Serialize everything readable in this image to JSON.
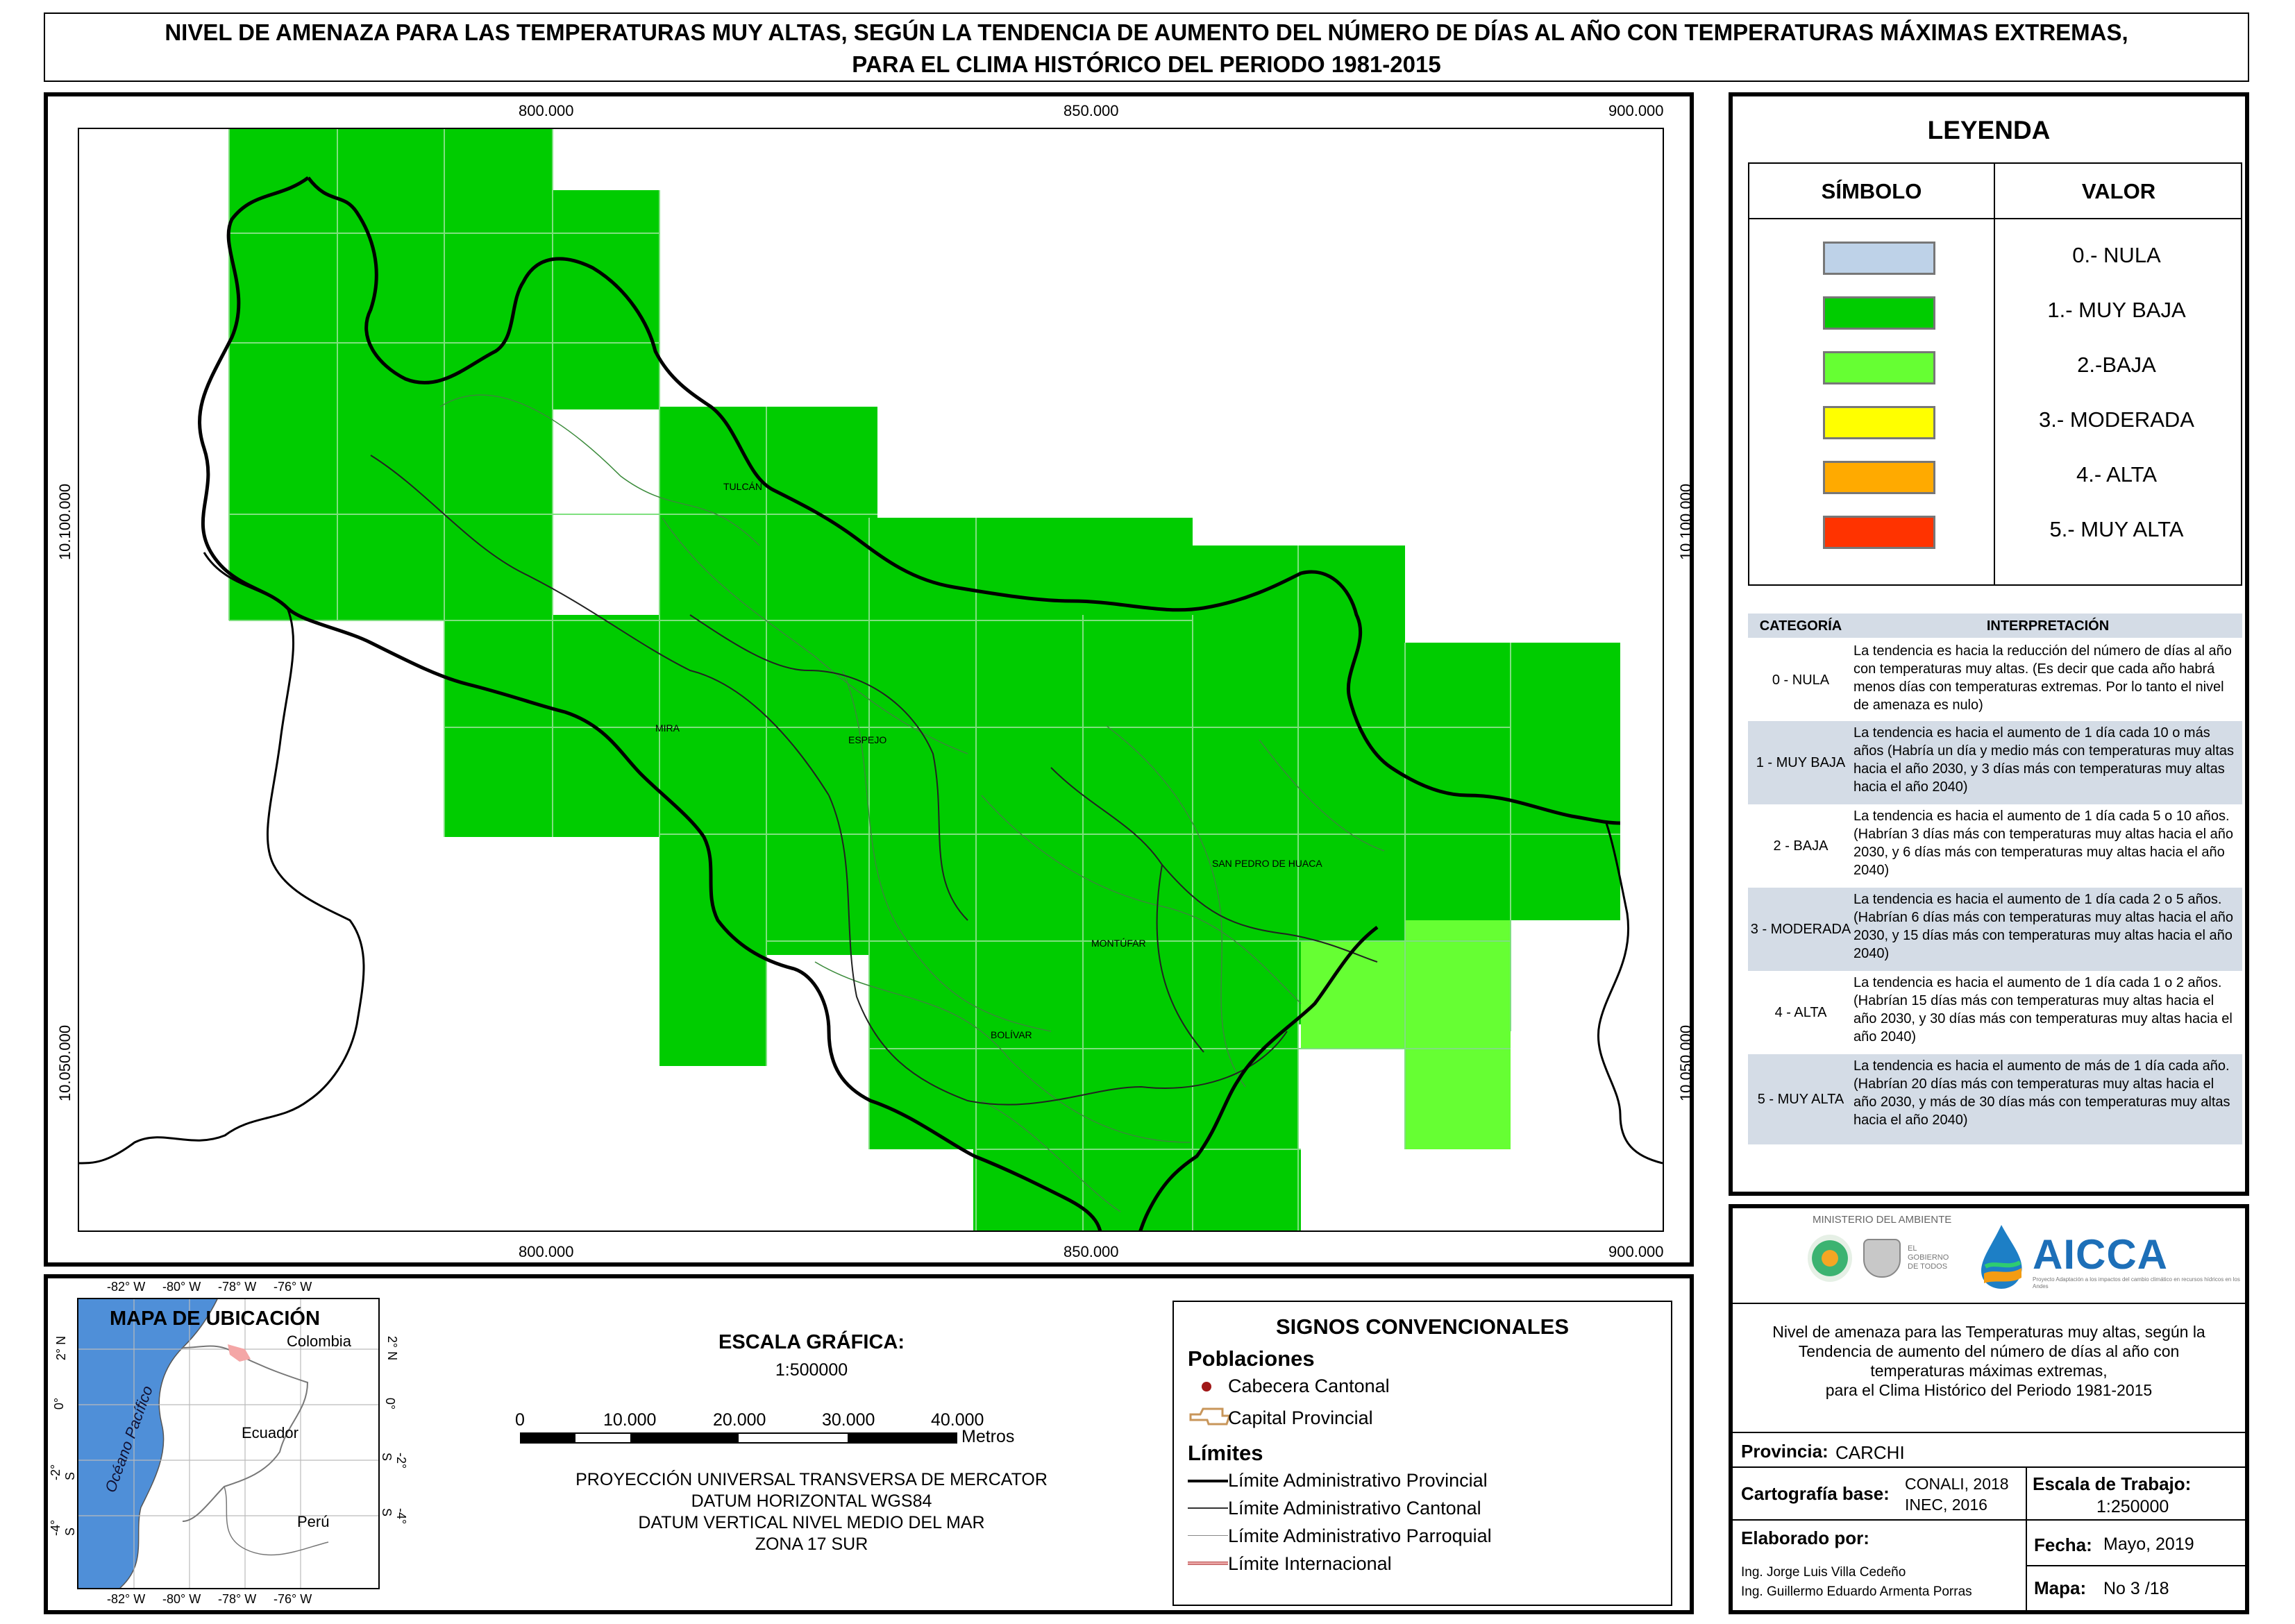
{
  "title": {
    "line1": "NIVEL DE AMENAZA PARA LAS TEMPERATURAS MUY ALTAS, SEGÚN LA TENDENCIA DE AUMENTO DEL NÚMERO DE DÍAS AL AÑO CON TEMPERATURAS MÁXIMAS EXTREMAS,",
    "line2": "PARA EL CLIMA HISTÓRICO DEL PERIODO 1981-2015"
  },
  "map": {
    "x_ticks": [
      "800.000",
      "850.000",
      "900.000"
    ],
    "y_ticks": [
      "10.100.000",
      "10.050.000"
    ],
    "place_labels": [
      "TULCÁN",
      "MIRA",
      "ESPEJO",
      "SAN PEDRO DE HUACA",
      "MONTÚFAR",
      "BOLÍVAR"
    ],
    "colors": {
      "muy_baja": "#00cc00",
      "baja": "#66ff33",
      "grid": "#7fe07f",
      "boundary": "#000000"
    }
  },
  "legend": {
    "title": "LEYENDA",
    "col_symbol": "SÍMBOLO",
    "col_value": "VALOR",
    "items": [
      {
        "label": "0.- NULA",
        "color": "#bed2e8"
      },
      {
        "label": "1.- MUY BAJA",
        "color": "#00cc00"
      },
      {
        "label": "2.-BAJA",
        "color": "#66ff33"
      },
      {
        "label": "3.- MODERADA",
        "color": "#ffff00"
      },
      {
        "label": "4.- ALTA",
        "color": "#ffaa00"
      },
      {
        "label": "5.- MUY ALTA",
        "color": "#ff3300"
      }
    ]
  },
  "interpretation": {
    "col_category": "CATEGORÍA",
    "col_interp": "INTERPRETACIÓN",
    "rows": [
      {
        "cat": "0 - NULA",
        "text": "La tendencia es hacia la reducción del número de días al año con temperaturas muy altas. (Es decir que cada año habrá menos días con temperaturas extremas. Por lo tanto el nivel de amenaza es nulo)"
      },
      {
        "cat": "1 - MUY BAJA",
        "text": "La tendencia es hacia el aumento de 1 día cada 10 o más años (Habría un día y medio más con temperaturas muy altas hacia el año 2030, y 3 días más con temperaturas muy altas hacia el año 2040)"
      },
      {
        "cat": "2 - BAJA",
        "text": "La tendencia es hacia el aumento de 1 día cada 5 o 10 años. (Habrían 3 días más con temperaturas muy altas hacia el año 2030, y 6 días más con temperaturas muy altas hacia el año 2040)"
      },
      {
        "cat": "3 - MODERADA",
        "text": "La tendencia es hacia el aumento de 1 día cada 2 o 5 años. (Habrían 6 días más con temperaturas muy altas hacia el año 2030, y 15 días más con temperaturas muy altas hacia el año 2040)"
      },
      {
        "cat": "4 - ALTA",
        "text": "La tendencia es hacia el aumento de 1 día cada 1 o 2 años. (Habrían 15 días más con temperaturas muy altas hacia el año 2030, y 30 días más con temperaturas muy altas hacia el año 2040)"
      },
      {
        "cat": "5 - MUY ALTA",
        "text": "La tendencia es hacia el aumento de más de 1 día cada año. (Habrían 20 días más con temperaturas muy altas hacia el año 2030, y más de 30 días más con temperaturas muy altas hacia el año 2040)"
      }
    ]
  },
  "location_map": {
    "title": "MAPA DE UBICACIÓN",
    "lon_ticks": [
      "-82° W",
      "-80° W",
      "-78° W",
      "-76° W"
    ],
    "lat_ticks": [
      "2° N",
      "0°",
      "-2° S",
      "-4° S"
    ],
    "labels": {
      "colombia": "Colombia",
      "ecuador": "Ecuador",
      "peru": "Perú",
      "ocean": "Océano Pacífico"
    }
  },
  "scale": {
    "title": "ESCALA GRÁFICA:",
    "ratio": "1:500000",
    "ticks": [
      "0",
      "10.000",
      "20.000",
      "30.000",
      "40.000"
    ],
    "unit": "Metros",
    "projection": [
      "PROYECCIÓN UNIVERSAL TRANSVERSA DE MERCATOR",
      "DATUM HORIZONTAL WGS84",
      "DATUM VERTICAL NIVEL MEDIO DEL MAR",
      "ZONA 17 SUR"
    ]
  },
  "signs": {
    "title": "SIGNOS CONVENCIONALES",
    "poblaciones": "Poblaciones",
    "cabecera": "Cabecera Cantonal",
    "capital": "Capital Provincial",
    "limites": "Límites",
    "lim_prov": "Límite Administrativo Provincial",
    "lim_cant": "Límite Administrativo Cantonal",
    "lim_parr": "Límite Administrativo Parroquial",
    "lim_int": "Límite Internacional"
  },
  "info": {
    "ministry": "MINISTERIO DEL AMBIENTE",
    "gov": "EL GOBIERNO DE TODOS",
    "project_name": "AICCA",
    "project_sub": "Proyecto Adaptación a los impactos del cambio climático en recursos hídricos en los Andes",
    "description": [
      "Nivel de amenaza para las Temperaturas muy altas, según la",
      "Tendencia de aumento del número de días al año con",
      "temperaturas máximas extremas,",
      "para el Clima Histórico del Periodo 1981-2015"
    ],
    "provincia_label": "Provincia:",
    "provincia_value": "CARCHI",
    "cartografia_label": "Cartografía base:",
    "cartografia_value1": "CONALI, 2018",
    "cartografia_value2": "INEC, 2016",
    "escala_label": "Escala de Trabajo:",
    "escala_value": "1:250000",
    "elaborado_label": "Elaborado por:",
    "author1": "Ing. Jorge Luis Villa Cedeño",
    "author2": "Ing. Guillermo Eduardo Armenta Porras",
    "fecha_label": "Fecha:",
    "fecha_value": "Mayo, 2019",
    "mapa_label": "Mapa:",
    "mapa_value": "No 3 /18"
  }
}
